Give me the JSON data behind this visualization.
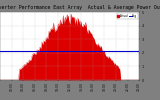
{
  "title": "Solar PV/Inverter Performance East Array  Actual & Average Power Output",
  "bg_color": "#808080",
  "plot_bg_color": "#ffffff",
  "bar_color": "#dd0000",
  "avg_line_color": "#0000cc",
  "avg_value": 0.42,
  "ylim": [
    0,
    1.0
  ],
  "xlim": [
    0,
    143
  ],
  "num_points": 144,
  "grid_color": "#cccccc",
  "title_fontsize": 3.5,
  "tick_fontsize": 2.5,
  "y_labels": [
    "0",
    "1",
    "2",
    "3",
    "4",
    "5"
  ],
  "ytick_pos": [
    0.0,
    0.2,
    0.4,
    0.6,
    0.8,
    1.0
  ],
  "xtick_labels": [
    "00:00",
    "02:00",
    "04:00",
    "06:00",
    "08:00",
    "10:00",
    "12:00",
    "14:00",
    "16:00",
    "18:00",
    "20:00",
    "22:00",
    "24:00"
  ]
}
